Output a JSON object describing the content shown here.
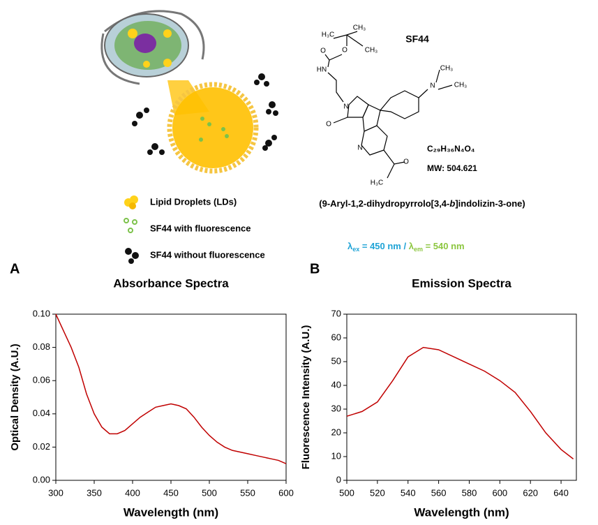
{
  "figure": {
    "compound": "SF44",
    "formula": "C₂₉H₃₆N₄O₄",
    "mw": "MW: 504.621",
    "name_parts": [
      "(9-Aryl-1,2-dihydropyrrolo[3,4-",
      "b",
      "]indolizin-3-one)"
    ],
    "atoms": [
      "H₃C",
      "CH₃",
      "CH₃",
      "O",
      "O",
      "HN",
      "N",
      "O",
      "N",
      "N",
      "CH₃",
      "CH₃",
      "O",
      "H₃C"
    ],
    "legend": [
      "Lipid Droplets (LDs)",
      "SF44 with fluorescence",
      "SF44 without fluorescence"
    ],
    "lambda": {
      "ex_symbol": "λ",
      "ex_sub": "ex",
      "ex_text": " = 450 nm / ",
      "em_symbol": "λ",
      "em_sub": "em",
      "em_text": " = 540 nm"
    },
    "panel_labels": [
      "A",
      "B"
    ]
  },
  "chart_data": [
    {
      "type": "line",
      "title": "Absorbance Spectra",
      "x_label": "Wavelength (nm)",
      "y_label": "Optical Density (A.U.)",
      "x": [
        300,
        310,
        320,
        330,
        340,
        350,
        360,
        370,
        380,
        390,
        400,
        410,
        420,
        430,
        440,
        450,
        460,
        470,
        480,
        490,
        500,
        510,
        520,
        530,
        540,
        550,
        560,
        570,
        580,
        590,
        600
      ],
      "series": [
        {
          "name": "Absorbance",
          "color": "#c00000",
          "values": [
            0.1,
            0.09,
            0.08,
            0.068,
            0.052,
            0.04,
            0.032,
            0.028,
            0.028,
            0.03,
            0.034,
            0.038,
            0.041,
            0.044,
            0.045,
            0.046,
            0.045,
            0.043,
            0.038,
            0.032,
            0.027,
            0.023,
            0.02,
            0.018,
            0.017,
            0.016,
            0.015,
            0.014,
            0.013,
            0.012,
            0.01
          ]
        }
      ],
      "xlim": [
        300,
        600
      ],
      "xticks": [
        300,
        350,
        400,
        450,
        500,
        550,
        600
      ],
      "ylim": [
        0,
        0.1
      ],
      "yticks": [
        {
          "value": 0,
          "label": "0.00"
        },
        {
          "value": 0.02,
          "label": "0.02"
        },
        {
          "value": 0.04,
          "label": "0.04"
        },
        {
          "value": 0.06,
          "label": "0.06"
        },
        {
          "value": 0.08,
          "label": "0.08"
        },
        {
          "value": 0.1,
          "label": "0.10"
        }
      ]
    },
    {
      "type": "line",
      "title": "Emission Spectra",
      "x_label": "Wavelength (nm)",
      "y_label": "Fluorescence Intensity (A.U.)",
      "x": [
        500,
        510,
        520,
        530,
        540,
        550,
        560,
        570,
        580,
        590,
        600,
        610,
        620,
        630,
        640,
        648
      ],
      "series": [
        {
          "name": "Emission",
          "color": "#c00000",
          "values": [
            27,
            29,
            33,
            42,
            52,
            56,
            55,
            52,
            49,
            46,
            42,
            37,
            29,
            20,
            13,
            9
          ]
        }
      ],
      "xlim": [
        500,
        650
      ],
      "xticks": [
        500,
        520,
        540,
        560,
        580,
        600,
        620,
        640
      ],
      "ylim": [
        0,
        70
      ],
      "yticks": [
        0,
        10,
        20,
        30,
        40,
        50,
        60,
        70
      ]
    }
  ]
}
